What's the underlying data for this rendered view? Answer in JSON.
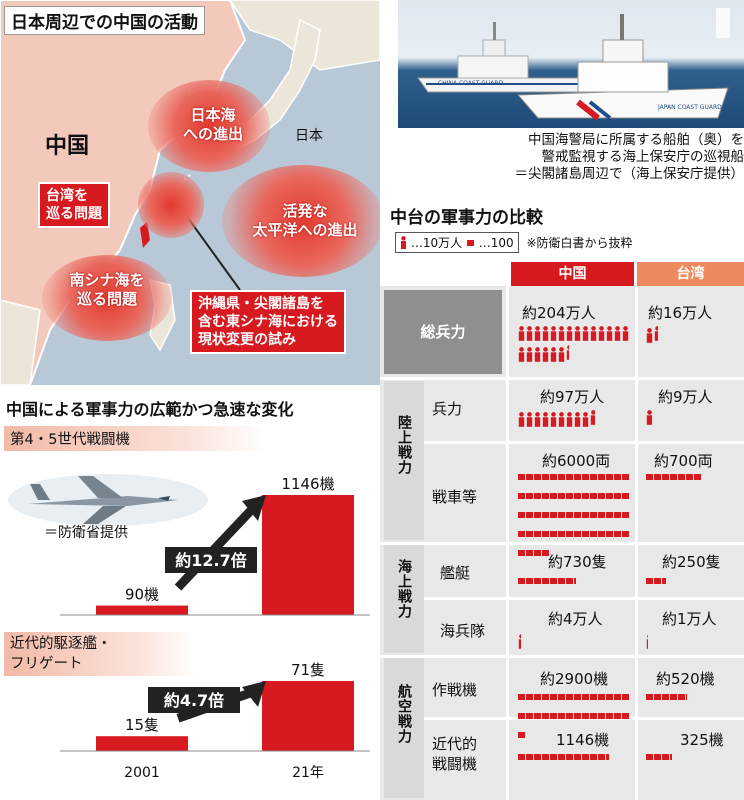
{
  "map": {
    "title": "日本周辺での中国の活動",
    "label_china": "中国",
    "label_japan": "日本",
    "bubbles": [
      {
        "text": "日本海\nへの進出"
      },
      {
        "text": "活発な\n太平洋への進出"
      },
      {
        "text": "南シナ海を\n巡る問題"
      }
    ],
    "boxes": [
      {
        "text": "台湾を\n巡る問題"
      },
      {
        "text": "沖縄県・尖閣諸島を\n含む東シナ海における\n現状変更の試み"
      }
    ]
  },
  "photo": {
    "caption": "中国海警局に所属する船舶（奥）を\n警戒監視する海上保安庁の巡視船\n＝尖閣諸島周辺で（海上保安庁提供）",
    "ship_text_left": "CHINA COAST GUARD",
    "ship_text_right": "JAPAN COAST GUARD"
  },
  "comparison": {
    "title": "中台の軍事力の比較",
    "legend_person": "…10万人",
    "legend_bar": "…100",
    "legend_source": "※防衛白書から抜粋",
    "col_china": "中国",
    "col_taiwan": "台湾",
    "colors": {
      "china": "#d71920",
      "taiwan": "#ee8a5e"
    },
    "rows": [
      {
        "group": "",
        "label": "総兵力",
        "china": "約204万人",
        "taiwan": "約16万人",
        "china_n": 204,
        "taiwan_n": 16,
        "unit": "10万人"
      },
      {
        "group": "陸上戦力",
        "label": "兵力",
        "china": "約97万人",
        "taiwan": "約9万人",
        "china_n": 97,
        "taiwan_n": 9,
        "unit": "10万人"
      },
      {
        "group": "陸上戦力",
        "label": "戦車等",
        "china": "約6000両",
        "taiwan": "約700両",
        "china_n": 6000,
        "taiwan_n": 700,
        "unit": "100"
      },
      {
        "group": "海上戦力",
        "label": "艦艇",
        "china": "約730隻",
        "taiwan": "約250隻",
        "china_n": 730,
        "taiwan_n": 250,
        "unit": "100"
      },
      {
        "group": "海上戦力",
        "label": "海兵隊",
        "china": "約4万人",
        "taiwan": "約1万人",
        "china_n": 4,
        "taiwan_n": 1,
        "unit": "10万人"
      },
      {
        "group": "航空戦力",
        "label": "作戦機",
        "china": "約2900機",
        "taiwan": "約520機",
        "china_n": 2900,
        "taiwan_n": 520,
        "unit": "100"
      },
      {
        "group": "航空戦力",
        "label": "近代的\n戦闘機",
        "china": "1146機",
        "taiwan": "325機",
        "china_n": 1146,
        "taiwan_n": 325,
        "unit": "100"
      }
    ],
    "groups": [
      "陸上戦力",
      "海上戦力",
      "航空戦力"
    ]
  },
  "growth": {
    "title": "中国による軍事力の広範かつ急速な変化",
    "photo_credit": "＝防衛省提供"
  },
  "chart_data": [
    {
      "type": "bar",
      "title": "第4・5世代戦闘機",
      "categories": [
        "2001",
        "21年"
      ],
      "values": [
        90,
        1146
      ],
      "value_labels": [
        "90機",
        "1146機"
      ],
      "ratio_label": "約12.7倍",
      "color": "#d71920"
    },
    {
      "type": "bar",
      "title": "近代的駆逐艦・\nフリゲート",
      "categories": [
        "2001",
        "21年"
      ],
      "values": [
        15,
        71
      ],
      "value_labels": [
        "15隻",
        "71隻"
      ],
      "ratio_label": "約4.7倍",
      "color": "#d71920"
    }
  ]
}
